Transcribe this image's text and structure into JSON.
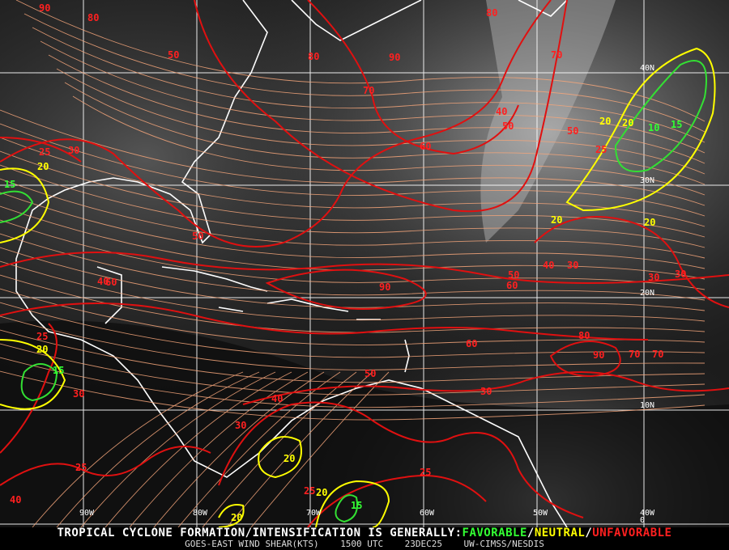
{
  "map": {
    "longitude_labels": [
      "90W",
      "80W",
      "70W",
      "60W",
      "50W",
      "40W"
    ],
    "latitude_labels": [
      "40N",
      "30N",
      "20N",
      "10N",
      "0"
    ],
    "colors": {
      "favorable": "#33ff33",
      "neutral": "#ffff00",
      "unfavorable": "#ff2020",
      "streamline": "#f4a57a",
      "coastline": "#ffffff"
    },
    "contour_labels": [
      {
        "value": "90",
        "class": "unfavorable"
      },
      {
        "value": "80",
        "class": "unfavorable"
      },
      {
        "value": "50",
        "class": "unfavorable"
      },
      {
        "value": "80",
        "class": "unfavorable"
      },
      {
        "value": "90",
        "class": "unfavorable"
      },
      {
        "value": "70",
        "class": "unfavorable"
      },
      {
        "value": "25",
        "class": "unfavorable"
      },
      {
        "value": "30",
        "class": "unfavorable"
      },
      {
        "value": "20",
        "class": "neutral"
      },
      {
        "value": "15",
        "class": "favorable"
      },
      {
        "value": "60",
        "class": "unfavorable"
      },
      {
        "value": "50",
        "class": "unfavorable"
      },
      {
        "value": "40",
        "class": "unfavorable"
      },
      {
        "value": "50",
        "class": "unfavorable"
      },
      {
        "value": "20",
        "class": "neutral"
      },
      {
        "value": "10",
        "class": "favorable"
      },
      {
        "value": "15",
        "class": "favorable"
      },
      {
        "value": "25",
        "class": "unfavorable"
      },
      {
        "value": "20",
        "class": "neutral"
      },
      {
        "value": "20",
        "class": "neutral"
      },
      {
        "value": "30",
        "class": "unfavorable"
      },
      {
        "value": "40",
        "class": "unfavorable"
      },
      {
        "value": "50",
        "class": "unfavorable"
      },
      {
        "value": "60",
        "class": "unfavorable"
      },
      {
        "value": "90",
        "class": "unfavorable"
      },
      {
        "value": "50",
        "class": "unfavorable"
      },
      {
        "value": "60",
        "class": "unfavorable"
      },
      {
        "value": "80",
        "class": "unfavorable"
      },
      {
        "value": "90",
        "class": "unfavorable"
      },
      {
        "value": "70",
        "class": "unfavorable"
      },
      {
        "value": "60",
        "class": "unfavorable"
      },
      {
        "value": "50",
        "class": "unfavorable"
      },
      {
        "value": "40",
        "class": "unfavorable"
      },
      {
        "value": "30",
        "class": "unfavorable"
      },
      {
        "value": "30",
        "class": "unfavorable"
      },
      {
        "value": "25",
        "class": "unfavorable"
      },
      {
        "value": "20",
        "class": "neutral"
      },
      {
        "value": "15",
        "class": "favorable"
      },
      {
        "value": "30",
        "class": "unfavorable"
      },
      {
        "value": "25",
        "class": "unfavorable"
      },
      {
        "value": "20",
        "class": "neutral"
      },
      {
        "value": "20",
        "class": "neutral"
      },
      {
        "value": "25",
        "class": "unfavorable"
      },
      {
        "value": "20",
        "class": "neutral"
      },
      {
        "value": "15",
        "class": "favorable"
      },
      {
        "value": "25",
        "class": "unfavorable"
      },
      {
        "value": "40",
        "class": "unfavorable"
      },
      {
        "value": "40",
        "class": "unfavorable"
      },
      {
        "value": "30",
        "class": "unfavorable"
      },
      {
        "value": "20",
        "class": "neutral"
      },
      {
        "value": "30",
        "class": "unfavorable"
      },
      {
        "value": "80",
        "class": "unfavorable"
      },
      {
        "value": "70",
        "class": "unfavorable"
      },
      {
        "value": "70",
        "class": "unfavorable"
      }
    ]
  },
  "footer": {
    "headline_prefix": "TROPICAL CYCLONE FORMATION/INTENSIFICATION IS GENERALLY:",
    "favorable": "FAVORABLE",
    "sep1": "/",
    "neutral": "NEUTRAL",
    "sep2": "/",
    "unfavorable": "UNFAVORABLE",
    "product": "GOES-EAST WIND SHEAR(KTS)",
    "time": "1500 UTC",
    "date": "23DEC25",
    "source": "UW-CIMSS/NESDIS"
  }
}
